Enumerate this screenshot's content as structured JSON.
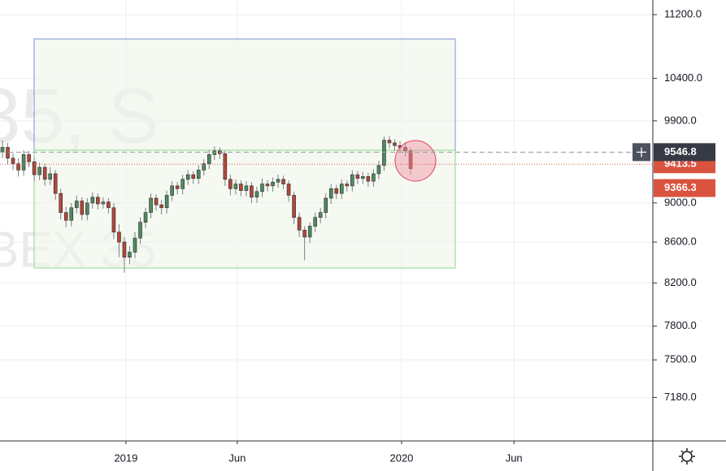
{
  "chart_data": {
    "type": "candlestick",
    "watermark": [
      "35, S",
      "BEX 35"
    ],
    "x": [
      0,
      1,
      2,
      3,
      4,
      5,
      6,
      7,
      8,
      9,
      10,
      11,
      12,
      13,
      14,
      15,
      16,
      17,
      18,
      19,
      20,
      21,
      22,
      23,
      24,
      25,
      26,
      27,
      28,
      29,
      30,
      31,
      32,
      33,
      34,
      35,
      36,
      37,
      38,
      39,
      40,
      41,
      42,
      43,
      44,
      45,
      46,
      47,
      48,
      49,
      50,
      51,
      52,
      53,
      54,
      55,
      56,
      57,
      58,
      59,
      60,
      61,
      62,
      63,
      64,
      65,
      66,
      67,
      68,
      69,
      70,
      71,
      72,
      73,
      74,
      75,
      76,
      77
    ],
    "open": [
      9550,
      9600,
      9480,
      9420,
      9350,
      9520,
      9440,
      9300,
      9380,
      9250,
      9310,
      9100,
      8900,
      8820,
      8950,
      9020,
      8880,
      9000,
      9060,
      8990,
      9010,
      8950,
      8700,
      8600,
      8450,
      8500,
      8640,
      8800,
      8900,
      9050,
      8980,
      8950,
      9080,
      9180,
      9150,
      9250,
      9300,
      9260,
      9350,
      9420,
      9520,
      9560,
      9530,
      9250,
      9150,
      9200,
      9130,
      9180,
      9060,
      9120,
      9200,
      9180,
      9220,
      9250,
      9200,
      9080,
      8850,
      8720,
      8650,
      8760,
      8850,
      8900,
      9050,
      9150,
      9100,
      9200,
      9180,
      9300,
      9260,
      9280,
      9230,
      9310,
      9400,
      9680,
      9650,
      9620,
      9600,
      9560
    ],
    "high": [
      9680,
      9650,
      9540,
      9480,
      9570,
      9560,
      9490,
      9430,
      9420,
      9380,
      9350,
      9150,
      8960,
      9000,
      9080,
      9060,
      9050,
      9110,
      9100,
      9060,
      9050,
      9000,
      8780,
      8650,
      8560,
      8700,
      8850,
      8950,
      9100,
      9090,
      9030,
      9130,
      9230,
      9220,
      9300,
      9350,
      9340,
      9400,
      9470,
      9570,
      9610,
      9600,
      9560,
      9300,
      9250,
      9240,
      9230,
      9220,
      9170,
      9260,
      9240,
      9270,
      9300,
      9290,
      9240,
      9120,
      8900,
      8760,
      8800,
      8900,
      8950,
      9100,
      9200,
      9190,
      9250,
      9240,
      9350,
      9340,
      9330,
      9320,
      9360,
      9450,
      9720,
      9730,
      9690,
      9670,
      9650,
      9600
    ],
    "low": [
      9480,
      9410,
      9350,
      9280,
      9290,
      9380,
      9230,
      9240,
      9180,
      9190,
      9030,
      8830,
      8750,
      8760,
      8890,
      8820,
      8820,
      8940,
      8930,
      8940,
      8890,
      8630,
      8450,
      8300,
      8380,
      8440,
      8580,
      8740,
      8840,
      8920,
      8880,
      8890,
      9020,
      9090,
      9090,
      9190,
      9200,
      9200,
      9290,
      9360,
      9460,
      9470,
      9180,
      9080,
      9090,
      9070,
      9070,
      9000,
      9000,
      9060,
      9120,
      9120,
      9160,
      9140,
      9010,
      8780,
      8650,
      8420,
      8590,
      8700,
      8790,
      8840,
      8990,
      9040,
      9040,
      9120,
      9120,
      9200,
      9200,
      9170,
      9170,
      9250,
      9340,
      9590,
      9560,
      9540,
      9500,
      9300
    ],
    "close": [
      9600,
      9480,
      9420,
      9350,
      9520,
      9440,
      9300,
      9380,
      9250,
      9310,
      9100,
      8900,
      8820,
      8950,
      9020,
      8880,
      9000,
      9060,
      8990,
      9010,
      8950,
      8700,
      8600,
      8450,
      8500,
      8640,
      8800,
      8900,
      9050,
      8980,
      8950,
      9080,
      9180,
      9150,
      9250,
      9300,
      9260,
      9350,
      9420,
      9520,
      9560,
      9530,
      9250,
      9150,
      9200,
      9130,
      9180,
      9060,
      9120,
      9200,
      9180,
      9220,
      9250,
      9200,
      9080,
      8850,
      8720,
      8650,
      8760,
      8850,
      8900,
      9050,
      9150,
      9100,
      9200,
      9180,
      9300,
      9260,
      9280,
      9230,
      9310,
      9400,
      9680,
      9650,
      9620,
      9600,
      9560,
      9366.3
    ],
    "up_color": "#4f8a5f",
    "down_color": "#b5463a",
    "log_scale": true,
    "ylim": [
      6826,
      11392
    ],
    "yticks": [
      {
        "value": 11200,
        "label": "11200.0"
      },
      {
        "value": 10400,
        "label": "10400.0"
      },
      {
        "value": 9900,
        "label": "9900.0"
      },
      {
        "value": 9000,
        "label": "9000.0"
      },
      {
        "value": 8600,
        "label": "8600.0"
      },
      {
        "value": 8200,
        "label": "8200.0"
      },
      {
        "value": 7800,
        "label": "7800.0"
      },
      {
        "value": 7500,
        "label": "7500.0"
      },
      {
        "value": 7180,
        "label": "7180.0"
      }
    ],
    "xlim": [
      -0.46,
      122.7
    ],
    "xticks": [
      {
        "value": 23.3,
        "label": "2019"
      },
      {
        "value": 44.3,
        "label": "Jun"
      },
      {
        "value": 75.3,
        "label": "2020"
      },
      {
        "value": 96.5,
        "label": "Jun"
      }
    ],
    "grid": true,
    "crosshair_price": {
      "value": 9546.8,
      "label": "9546.8"
    },
    "price_labels": [
      {
        "value": 9413.5,
        "label": "9413.5"
      },
      {
        "value": 9366.3,
        "label": "9366.3"
      }
    ]
  }
}
